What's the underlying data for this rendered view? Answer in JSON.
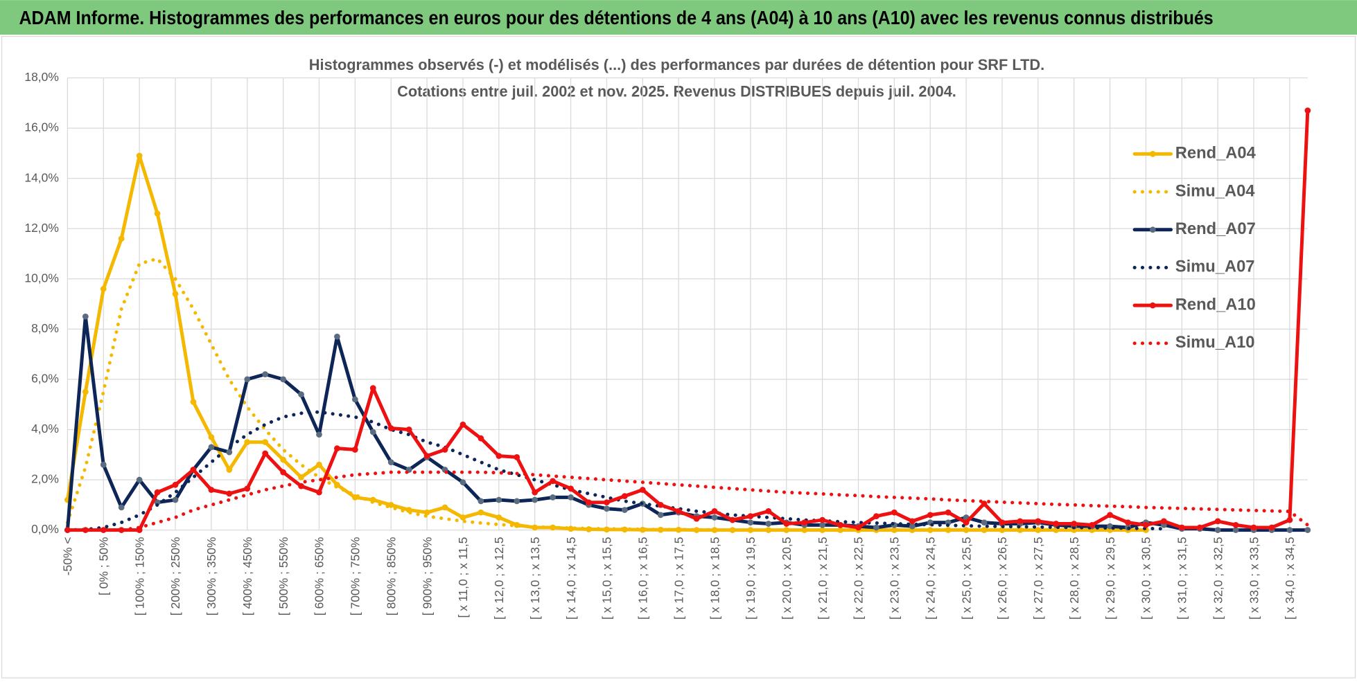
{
  "header": {
    "title": "ADAM Informe. Histogrammes des performances en euros pour des détentions de 4 ans (A04) à 10 ans (A10) avec les revenus connus distribués"
  },
  "chart_data": {
    "type": "line",
    "title": "Histogrammes observés (-) et modélisés (...) des performances par durées de détention pour SRF LTD.",
    "subtitle": "Cotations entre juil. 2002 et nov. 2025. Revenus DISTRIBUES depuis juil. 2004.",
    "categories": [
      "-50% <",
      null,
      "[ 0% ; 50%",
      null,
      "[ 100% ; 150%",
      null,
      "[ 200% ; 250%",
      null,
      "[ 300% ; 350%",
      null,
      "[ 400% ; 450%",
      null,
      "[ 500% ; 550%",
      null,
      "[ 600% ; 650%",
      null,
      "[ 700% ; 750%",
      null,
      "[ 800% ; 850%",
      null,
      "[ 900% ; 950%",
      null,
      "[ x 11,0 ; x 11,5",
      null,
      "[ x 12,0 ; x 12,5",
      null,
      "[ x 13,0 ; x 13,5",
      null,
      "[ x 14,0 ; x 14,5",
      null,
      "[ x 15,0 ; x 15,5",
      null,
      "[ x 16,0 ; x 16,5",
      null,
      "[ x 17,0 ; x 17,5",
      null,
      "[ x 18,0 ; x 18,5",
      null,
      "[ x 19,0 ; x 19,5",
      null,
      "[ x 20,0 ; x 20,5",
      null,
      "[ x 21,0 ; x 21,5",
      null,
      "[ x 22,0 ; x 22,5",
      null,
      "[ x 23,0 ; x 23,5",
      null,
      "[ x 24,0 ; x 24,5",
      null,
      "[ x 25,0 ; x 25,5",
      null,
      "[ x 26,0 ; x 26,5",
      null,
      "[ x 27,0 ; x 27,5",
      null,
      "[ x 28,0 ; x 28,5",
      null,
      "[ x 29,0 ; x 29,5",
      null,
      "[ x 30,0 ; x 30,5",
      null,
      "[ x 31,0 ; x 31,5",
      null,
      "[ x 32,0 ; x 32,5",
      null,
      "[ x 33,0 ; x 33,5",
      null,
      "[ x 34,0 ; x 34,5",
      null
    ],
    "series": [
      {
        "name": "Rend_A04",
        "color": "#f5b800",
        "line_style": "solid",
        "markers": true,
        "values": [
          1.2,
          5.5,
          9.6,
          11.6,
          14.9,
          12.6,
          9.4,
          5.1,
          3.7,
          2.4,
          3.5,
          3.5,
          2.8,
          2.1,
          2.6,
          1.8,
          1.3,
          1.2,
          1.0,
          0.8,
          0.7,
          0.9,
          0.5,
          0.7,
          0.5,
          0.2,
          0.1,
          0.1,
          0.05,
          0.03,
          0.02,
          0.02,
          0.01,
          0.01,
          0.01,
          0,
          0,
          0,
          0,
          0,
          0,
          0,
          0,
          0,
          0,
          0,
          0,
          0,
          0,
          0,
          0,
          0,
          0,
          0,
          0,
          0,
          0,
          0,
          0,
          0,
          0,
          null,
          null,
          null,
          null,
          null,
          null,
          null,
          null,
          null
        ]
      },
      {
        "name": "Simu_A04",
        "color": "#f5b800",
        "line_style": "dotted",
        "markers": false,
        "values": [
          0.3,
          2.5,
          5.5,
          8.8,
          10.6,
          10.8,
          10.0,
          8.8,
          7.4,
          6.0,
          4.9,
          4.0,
          3.2,
          2.6,
          2.1,
          1.7,
          1.4,
          1.1,
          0.9,
          0.7,
          0.55,
          0.45,
          0.35,
          0.28,
          0.22,
          0.17,
          0.13,
          0.1,
          0.08,
          0.06,
          0.05,
          0.04,
          0.03,
          0.02,
          0.02,
          0.01,
          0.01,
          0,
          0,
          0,
          0,
          0,
          0,
          0,
          0,
          0,
          0,
          0,
          0,
          0,
          0,
          0,
          0,
          0,
          0,
          0,
          0,
          0,
          0,
          0,
          0,
          null,
          null,
          null,
          null,
          null,
          null,
          null,
          null,
          null
        ]
      },
      {
        "name": "Rend_A07",
        "color": "#0d2557",
        "marker_color": "#5b6b80",
        "line_style": "solid",
        "markers": true,
        "values": [
          0,
          8.5,
          2.6,
          0.9,
          2.0,
          1.1,
          1.2,
          2.4,
          3.3,
          3.1,
          6.0,
          6.2,
          6.0,
          5.4,
          3.8,
          7.7,
          5.2,
          3.9,
          2.7,
          2.4,
          2.9,
          2.4,
          1.9,
          1.15,
          1.2,
          1.15,
          1.2,
          1.3,
          1.3,
          1.0,
          0.85,
          0.8,
          1.05,
          0.6,
          0.7,
          0.55,
          0.5,
          0.4,
          0.3,
          0.25,
          0.3,
          0.2,
          0.2,
          0.2,
          0.15,
          0.1,
          0.2,
          0.15,
          0.3,
          0.3,
          0.5,
          0.3,
          0.25,
          0.25,
          0.3,
          0.2,
          0.15,
          0.15,
          0.15,
          0.1,
          0.3,
          0.2,
          0.05,
          0.05,
          0,
          0,
          0,
          0,
          0,
          0
        ]
      },
      {
        "name": "Simu_A07",
        "color": "#0d2557",
        "line_style": "dotted",
        "markers": false,
        "values": [
          0,
          0.02,
          0.1,
          0.3,
          0.6,
          1.0,
          1.5,
          2.1,
          2.7,
          3.3,
          3.8,
          4.2,
          4.5,
          4.65,
          4.7,
          4.6,
          4.5,
          4.3,
          4.0,
          3.8,
          3.5,
          3.3,
          3.0,
          2.7,
          2.4,
          2.2,
          2.0,
          1.8,
          1.6,
          1.45,
          1.3,
          1.15,
          1.05,
          0.95,
          0.85,
          0.75,
          0.68,
          0.6,
          0.55,
          0.5,
          0.45,
          0.4,
          0.37,
          0.33,
          0.3,
          0.28,
          0.25,
          0.23,
          0.21,
          0.19,
          0.17,
          0.15,
          0.14,
          0.13,
          0.12,
          0.11,
          0.1,
          0.09,
          0.08,
          0.07,
          0.06,
          0.05,
          null,
          null,
          null,
          null,
          null,
          null,
          null,
          null
        ]
      },
      {
        "name": "Rend_A10",
        "color": "#ee1111",
        "line_style": "solid",
        "markers": true,
        "values": [
          0,
          0,
          0,
          0,
          0,
          1.5,
          1.8,
          2.4,
          1.6,
          1.45,
          1.65,
          3.05,
          2.3,
          1.75,
          1.5,
          3.25,
          3.2,
          5.65,
          4.05,
          4.0,
          2.95,
          3.2,
          4.2,
          3.65,
          2.95,
          2.9,
          1.5,
          1.95,
          1.65,
          1.1,
          1.1,
          1.35,
          1.6,
          1.0,
          0.75,
          0.45,
          0.75,
          0.4,
          0.55,
          0.75,
          0.25,
          0.3,
          0.4,
          0.2,
          0.1,
          0.55,
          0.7,
          0.35,
          0.6,
          0.7,
          0.3,
          1.05,
          0.3,
          0.35,
          0.35,
          0.25,
          0.25,
          0.2,
          0.6,
          0.3,
          0.2,
          0.35,
          0.1,
          0.1,
          0.35,
          0.2,
          0.1,
          0.1,
          0.4,
          16.7
        ]
      },
      {
        "name": "Simu_A10",
        "color": "#ee1111",
        "line_style": "dotted",
        "markers": false,
        "values": [
          0,
          0,
          0,
          0,
          0.1,
          0.3,
          0.5,
          0.8,
          1.0,
          1.2,
          1.4,
          1.6,
          1.75,
          1.9,
          2.0,
          2.1,
          2.2,
          2.25,
          2.3,
          2.3,
          2.3,
          2.3,
          2.3,
          2.3,
          2.28,
          2.25,
          2.2,
          2.15,
          2.1,
          2.05,
          2.0,
          1.95,
          1.9,
          1.85,
          1.8,
          1.75,
          1.7,
          1.65,
          1.6,
          1.55,
          1.5,
          1.47,
          1.44,
          1.4,
          1.37,
          1.33,
          1.3,
          1.27,
          1.24,
          1.2,
          1.17,
          1.14,
          1.11,
          1.08,
          1.05,
          1.02,
          1.0,
          0.97,
          0.95,
          0.93,
          0.9,
          0.88,
          0.86,
          0.84,
          0.82,
          0.8,
          0.78,
          0.76,
          0.74,
          0.2
        ]
      }
    ],
    "ylim": [
      0,
      18
    ],
    "yticks": [
      {
        "value": 0,
        "label": "0,0%"
      },
      {
        "value": 2,
        "label": "2,0%"
      },
      {
        "value": 4,
        "label": "4,0%"
      },
      {
        "value": 6,
        "label": "6,0%"
      },
      {
        "value": 8,
        "label": "8,0%"
      },
      {
        "value": 10,
        "label": "10,0%"
      },
      {
        "value": 12,
        "label": "12,0%"
      },
      {
        "value": 14,
        "label": "14,0%"
      },
      {
        "value": 16,
        "label": "16,0%"
      },
      {
        "value": 18,
        "label": "18,0%"
      }
    ],
    "grid": true,
    "legend": "right"
  }
}
